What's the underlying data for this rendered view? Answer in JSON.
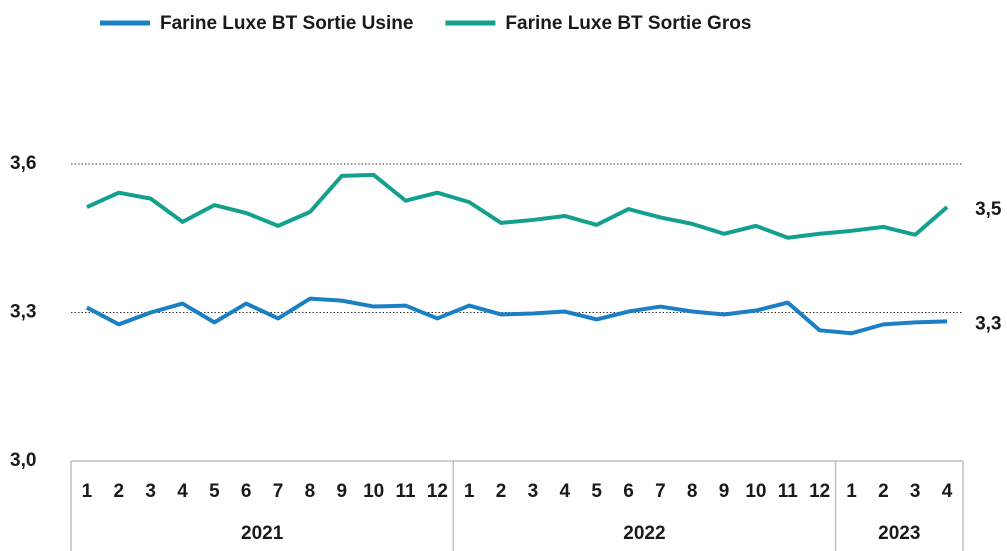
{
  "chart_data": {
    "type": "line",
    "categories": [
      "1",
      "2",
      "3",
      "4",
      "5",
      "6",
      "7",
      "8",
      "9",
      "10",
      "11",
      "12",
      "1",
      "2",
      "3",
      "4",
      "5",
      "6",
      "7",
      "8",
      "9",
      "10",
      "11",
      "12",
      "1",
      "2",
      "3",
      "4"
    ],
    "groups": [
      "2021",
      "2022",
      "2023"
    ],
    "series": [
      {
        "name": "Farine Luxe BT Sortie Usine",
        "color": "#1b7fc3",
        "values": [
          3.31,
          3.276,
          3.3,
          3.318,
          3.28,
          3.318,
          3.288,
          3.328,
          3.324,
          3.312,
          3.314,
          3.288,
          3.314,
          3.296,
          3.298,
          3.302,
          3.286,
          3.302,
          3.312,
          3.302,
          3.296,
          3.304,
          3.32,
          3.264,
          3.258,
          3.276,
          3.28,
          3.282
        ],
        "value_labels": [
          null,
          null,
          null,
          null,
          null,
          null,
          null,
          null,
          null,
          null,
          null,
          null,
          null,
          null,
          null,
          null,
          null,
          null,
          null,
          null,
          null,
          null,
          null,
          null,
          null,
          null,
          null,
          "3,3"
        ]
      },
      {
        "name": "Farine Luxe BT Sortie Gros",
        "color": "#14a08e",
        "values": [
          3.513,
          3.542,
          3.53,
          3.483,
          3.517,
          3.501,
          3.475,
          3.503,
          3.576,
          3.578,
          3.526,
          3.542,
          3.523,
          3.481,
          3.487,
          3.495,
          3.477,
          3.509,
          3.492,
          3.479,
          3.459,
          3.475,
          3.451,
          3.459,
          3.465,
          3.473,
          3.457,
          3.513
        ],
        "value_labels": [
          null,
          null,
          null,
          null,
          null,
          null,
          null,
          null,
          null,
          null,
          null,
          null,
          null,
          null,
          null,
          null,
          null,
          null,
          null,
          null,
          null,
          null,
          null,
          null,
          null,
          null,
          null,
          "3,5"
        ]
      }
    ],
    "ylim": [
      3.0,
      3.6
    ],
    "yticks": [
      {
        "value": 3.0,
        "label": "3,0"
      },
      {
        "value": 3.3,
        "label": "3,3"
      },
      {
        "value": 3.6,
        "label": "3,6"
      }
    ],
    "grid": true,
    "legend": "top"
  }
}
